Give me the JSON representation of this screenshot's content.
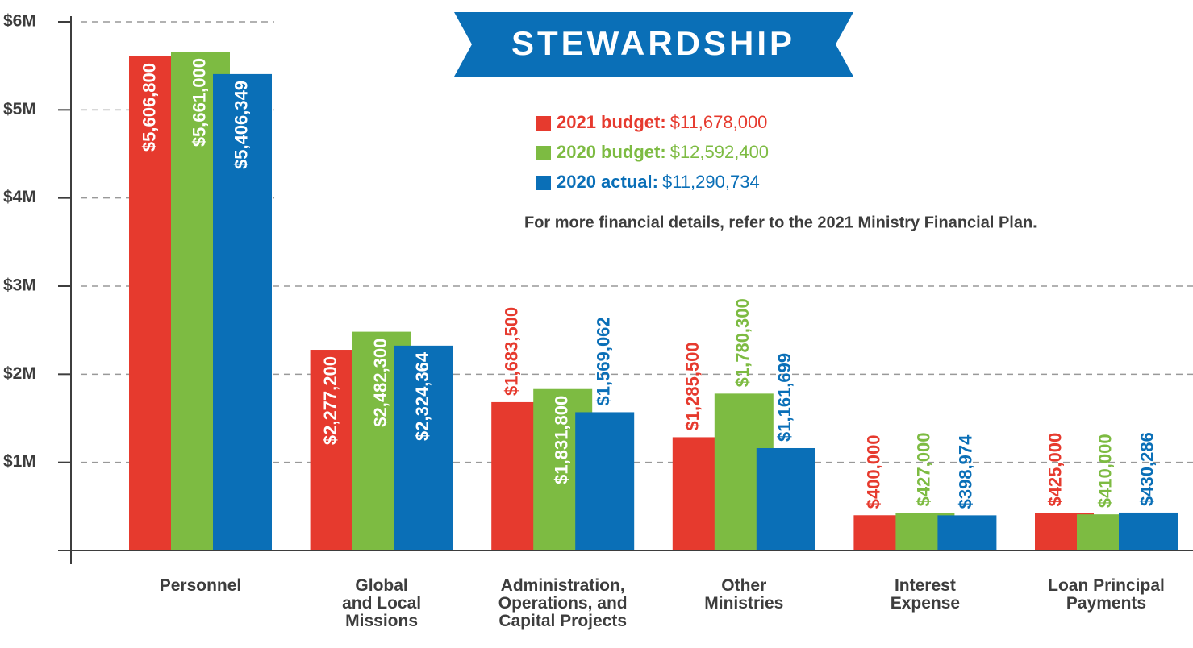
{
  "chart_data": {
    "type": "bar",
    "title": "STEWARDSHIP",
    "note": "For more financial details, refer to the 2021 Ministry Financial Plan.",
    "categories": [
      "Personnel",
      "Global\nand Local\nMissions",
      "Administration,\nOperations, and\nCapital Projects",
      "Other\nMinistries",
      "Interest\nExpense",
      "Loan Principal\nPayments"
    ],
    "series": [
      {
        "name": "2021 budget:",
        "total": "$11,678,000",
        "color": "#e63a2e",
        "values": [
          5606800,
          2277200,
          1683500,
          1285500,
          400000,
          425000
        ],
        "value_labels": [
          "$5,606,800",
          "$2,277,200",
          "$1,683,500",
          "$1,285,500",
          "$400,000",
          "$425,000"
        ]
      },
      {
        "name": "2020 budget:",
        "total": "$12,592,400",
        "color": "#7dbb42",
        "values": [
          5661000,
          2482300,
          1831800,
          1780300,
          427000,
          410000
        ],
        "value_labels": [
          "$5,661,000",
          "$2,482,300",
          "$1,831,800",
          "$1,780,300",
          "$427,000",
          "$410,000"
        ]
      },
      {
        "name": "2020 actual:",
        "total": "$11,290,734",
        "color": "#0a6fb7",
        "values": [
          5406349,
          2324364,
          1569062,
          1161699,
          398974,
          430286
        ],
        "value_labels": [
          "$5,406,349",
          "$2,324,364",
          "$1,569,062",
          "$1,161,699",
          "$398,974",
          "$430,286"
        ]
      }
    ],
    "ylim": [
      0,
      6000000
    ],
    "yticks": [
      {
        "value": 1000000,
        "label": "$1M"
      },
      {
        "value": 2000000,
        "label": "$2M"
      },
      {
        "value": 3000000,
        "label": "$3M"
      },
      {
        "value": 4000000,
        "label": "$4M"
      },
      {
        "value": 5000000,
        "label": "$5M"
      },
      {
        "value": 6000000,
        "label": "$6M"
      }
    ],
    "grid": true
  }
}
